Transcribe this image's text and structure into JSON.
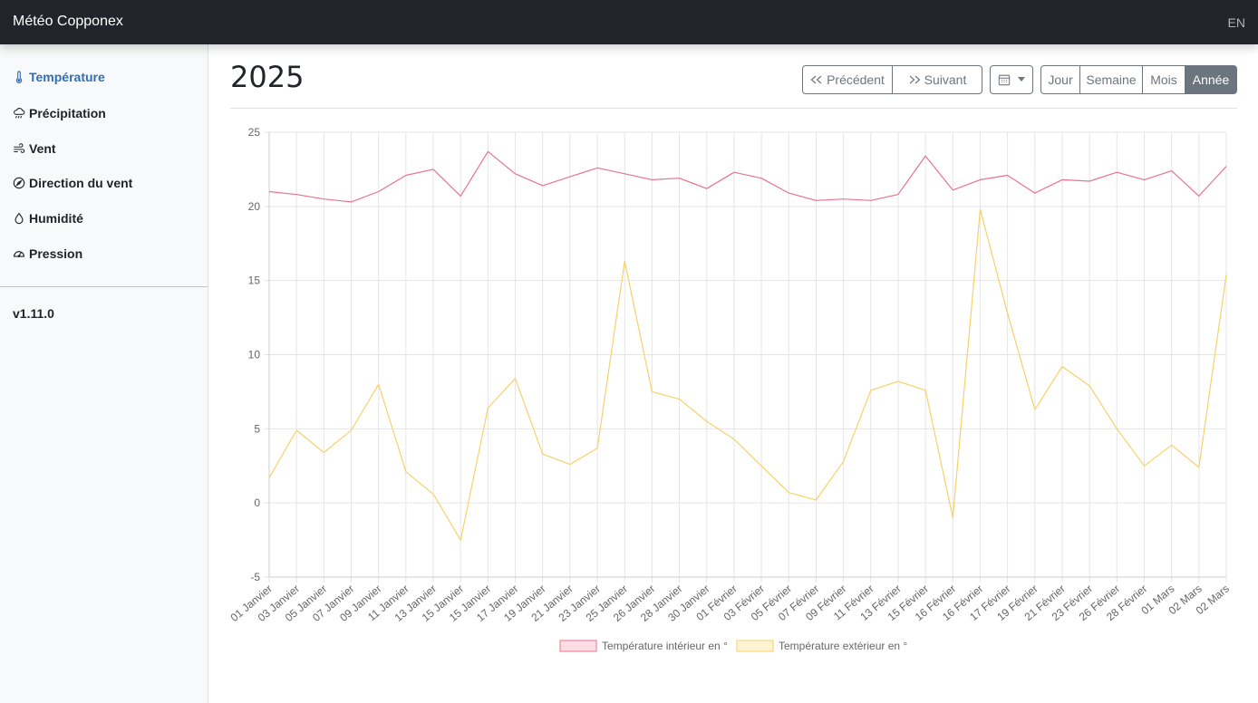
{
  "navbar": {
    "brand": "Météo Copponex",
    "lang": "EN"
  },
  "sidebar": {
    "items": [
      {
        "label": "Température",
        "icon": "thermometer-icon",
        "active": true
      },
      {
        "label": "Précipitation",
        "icon": "cloud-rain-icon",
        "active": false
      },
      {
        "label": "Vent",
        "icon": "wind-icon",
        "active": false
      },
      {
        "label": "Direction du vent",
        "icon": "compass-icon",
        "active": false
      },
      {
        "label": "Humidité",
        "icon": "droplet-icon",
        "active": false
      },
      {
        "label": "Pression",
        "icon": "speedometer-icon",
        "active": false
      }
    ],
    "version": "v1.11.0"
  },
  "main": {
    "title": "2025",
    "toolbar": {
      "previous_label": "Précédent",
      "next_label": "Suivant",
      "calendar_icon": "calendar-icon",
      "periods": [
        {
          "label": "Jour",
          "active": false
        },
        {
          "label": "Semaine",
          "active": false
        },
        {
          "label": "Mois",
          "active": false
        },
        {
          "label": "Année",
          "active": true
        }
      ]
    }
  },
  "chart_data": {
    "type": "line",
    "x": [
      "01 Janvier",
      "03 Janvier",
      "05 Janvier",
      "07 Janvier",
      "09 Janvier",
      "11 Janvier",
      "13 Janvier",
      "15 Janvier",
      "15 Janvier",
      "17 Janvier",
      "19 Janvier",
      "21 Janvier",
      "23 Janvier",
      "25 Janvier",
      "26 Janvier",
      "28 Janvier",
      "30 Janvier",
      "01 Février",
      "03 Février",
      "05 Février",
      "07 Février",
      "09 Février",
      "11 Février",
      "13 Février",
      "15 Février",
      "16 Février",
      "16 Février",
      "17 Février",
      "19 Février",
      "21 Février",
      "23 Février",
      "26 Février",
      "28 Février",
      "01 Mars",
      "02 Mars",
      "02 Mars"
    ],
    "ylim": [
      -5,
      25
    ],
    "yticks": [
      25,
      20,
      15,
      10,
      5,
      0,
      -5
    ],
    "grid": true,
    "legend_position": "bottom",
    "series": [
      {
        "name": "Température intérieur en °",
        "color": "#e8738e",
        "fill": "#ffdde4",
        "values": [
          21.0,
          20.8,
          20.5,
          20.3,
          21.0,
          22.1,
          22.5,
          20.7,
          23.7,
          22.2,
          21.4,
          22.0,
          22.6,
          22.2,
          21.8,
          21.9,
          21.2,
          22.3,
          21.9,
          20.9,
          20.4,
          20.5,
          20.4,
          20.8,
          23.4,
          21.1,
          21.8,
          22.1,
          20.9,
          21.8,
          21.7,
          22.3,
          21.8,
          22.4,
          20.7,
          22.7
        ]
      },
      {
        "name": "Température extérieur en °",
        "color": "#f6d16a",
        "fill": "#fff3d2",
        "values": [
          1.7,
          4.9,
          3.4,
          4.9,
          8.0,
          2.1,
          0.6,
          -2.5,
          6.4,
          8.4,
          3.3,
          2.6,
          3.7,
          16.3,
          7.5,
          7.0,
          5.5,
          4.3,
          2.5,
          0.7,
          0.2,
          2.8,
          7.6,
          8.2,
          7.6,
          -1.0,
          19.8,
          12.8,
          6.3,
          9.2,
          7.9,
          5.0,
          2.5,
          3.9,
          2.4,
          15.4
        ]
      }
    ]
  }
}
